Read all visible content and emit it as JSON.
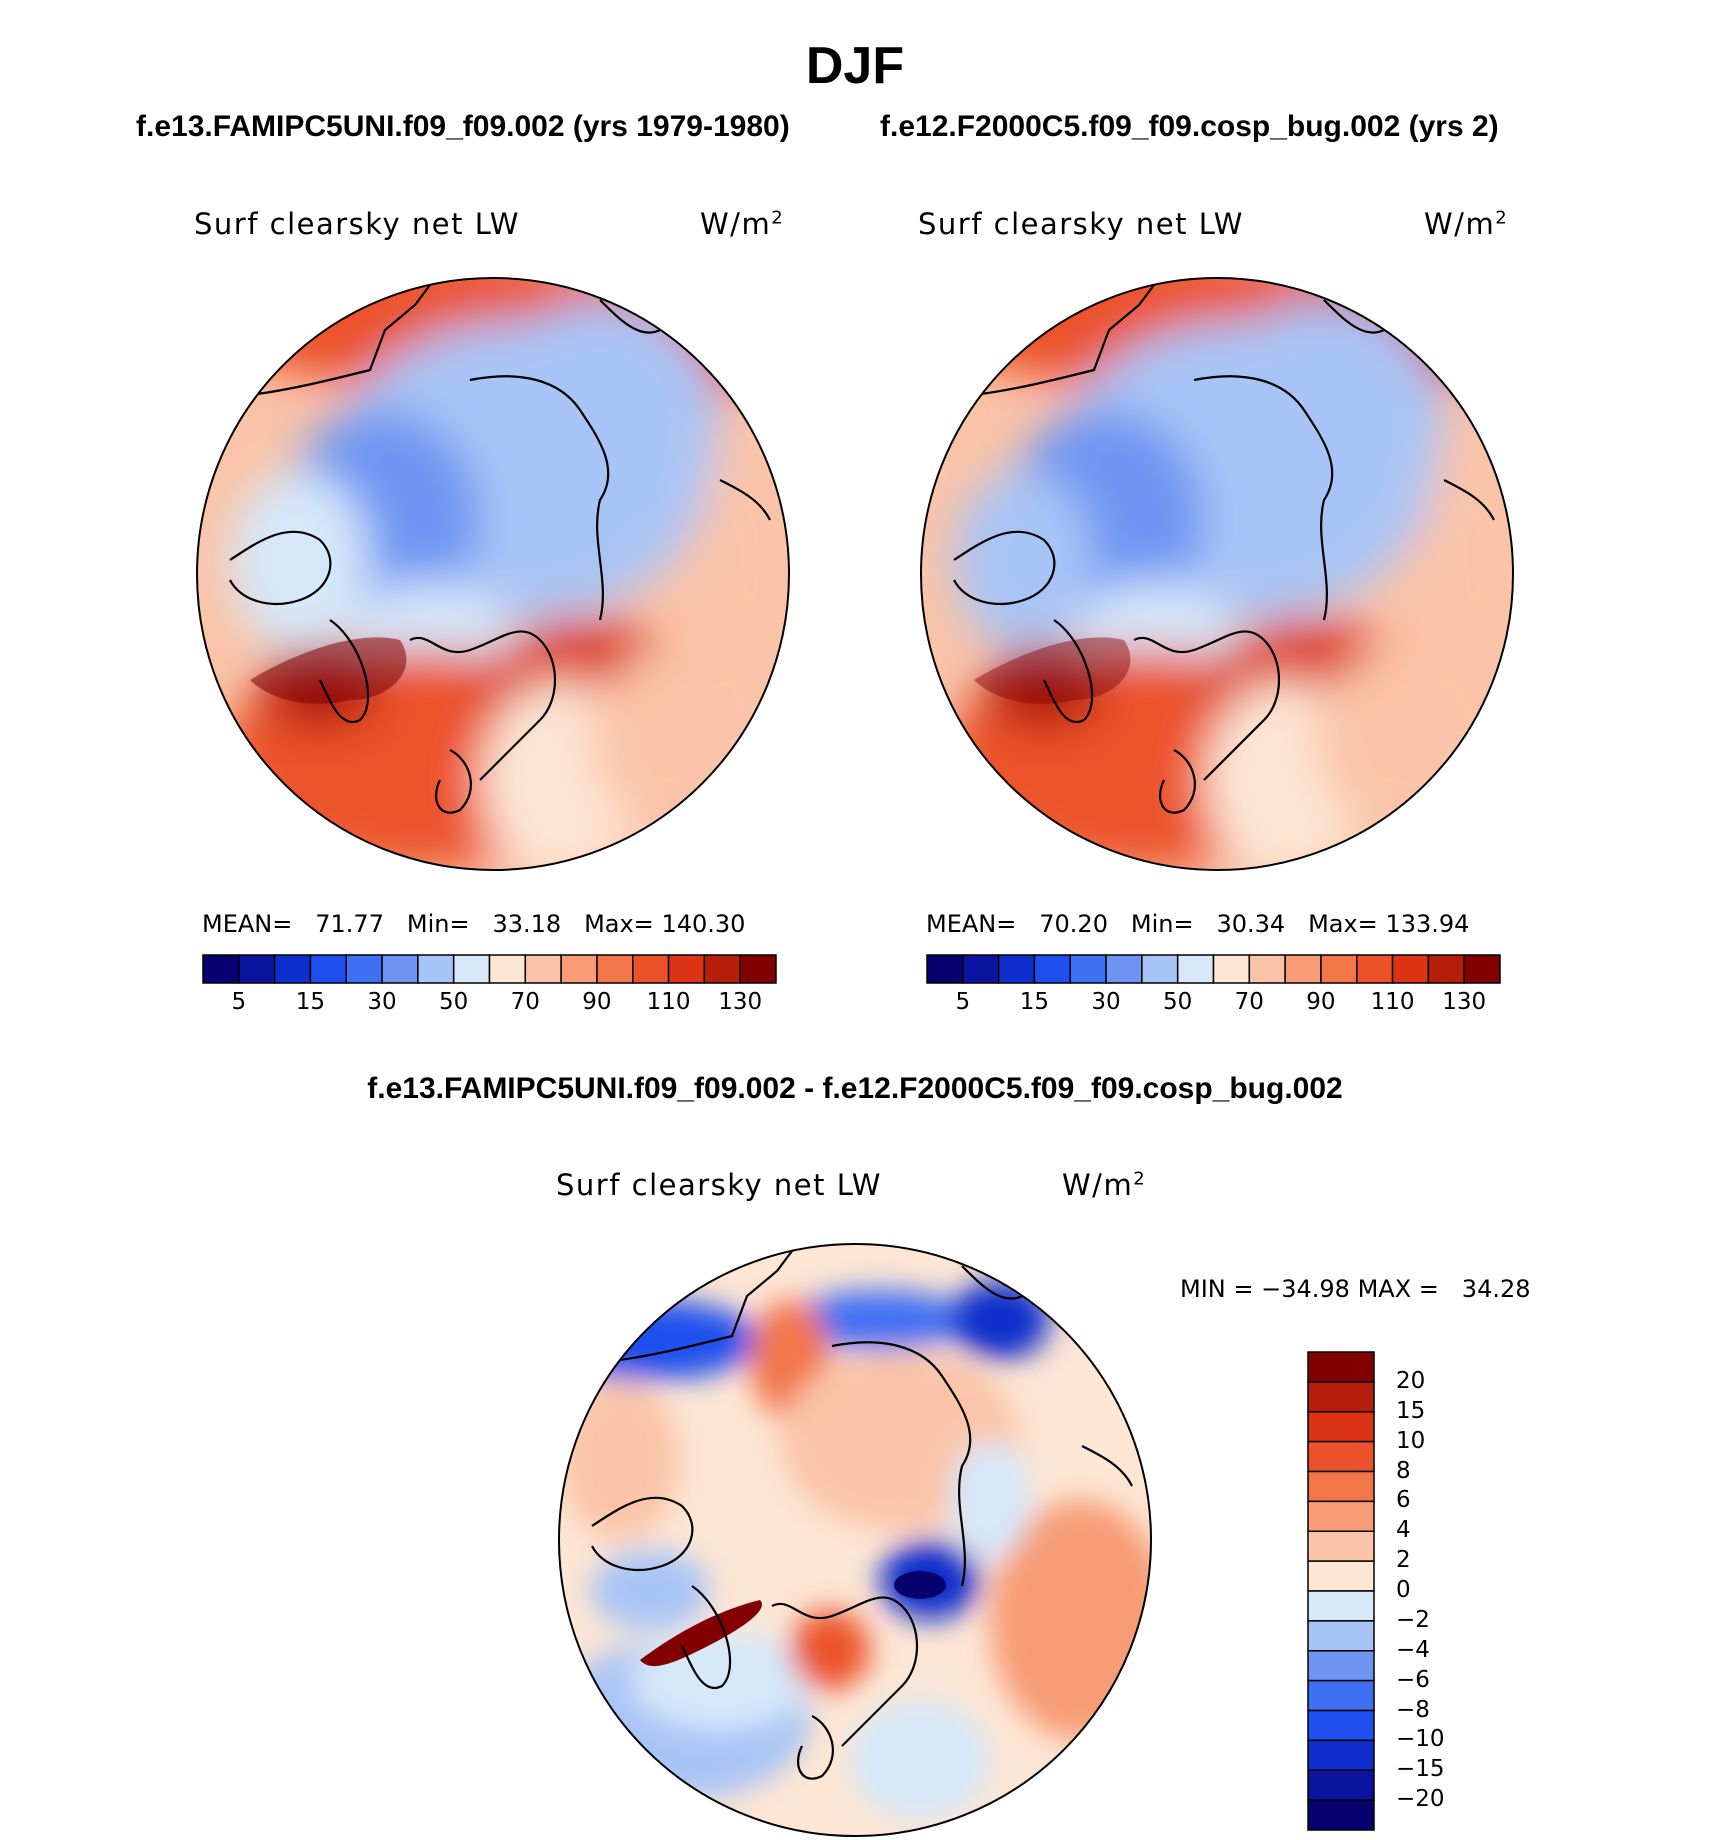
{
  "title": "DJF",
  "case_titles": [
    "f.e13.FAMIPC5UNI.f09_f09.002 (yrs 1979-1980)",
    "f.e12.F2000C5.f09_f09.cosp_bug.002 (yrs 2)"
  ],
  "diff_title": "f.e13.FAMIPC5UNI.f09_f09.002 - f.e12.F2000C5.f09_f09.cosp_bug.002",
  "chart_data": [
    {
      "type": "heatmap",
      "projection": "north polar stereographic",
      "label": "Surf clearsky net LW",
      "units": "W/m",
      "units_superscript": "2",
      "stats": {
        "mean_label": "MEAN=",
        "mean": "71.77",
        "min_label": "Min=",
        "min": "33.18",
        "max_label": "Max=",
        "max": "140.30"
      },
      "levels": [
        5,
        10,
        15,
        20,
        30,
        40,
        50,
        60,
        70,
        80,
        90,
        100,
        110,
        120,
        130
      ],
      "tick_labels": [
        "5",
        "15",
        "30",
        "50",
        "70",
        "90",
        "110",
        "130"
      ]
    },
    {
      "type": "heatmap",
      "projection": "north polar stereographic",
      "label": "Surf clearsky net LW",
      "units": "W/m",
      "units_superscript": "2",
      "stats": {
        "mean_label": "MEAN=",
        "mean": "70.20",
        "min_label": "Min=",
        "min": "30.34",
        "max_label": "Max=",
        "max": "133.94"
      },
      "levels": [
        5,
        10,
        15,
        20,
        30,
        40,
        50,
        60,
        70,
        80,
        90,
        100,
        110,
        120,
        130
      ],
      "tick_labels": [
        "5",
        "15",
        "30",
        "50",
        "70",
        "90",
        "110",
        "130"
      ]
    },
    {
      "type": "heatmap",
      "projection": "north polar stereographic",
      "label": "Surf clearsky net LW",
      "units": "W/m",
      "units_superscript": "2",
      "stats": {
        "min_label": "MIN =",
        "min": "−34.98",
        "max_label": "MAX =",
        "max": "34.28"
      },
      "levels": [
        "20",
        "15",
        "10",
        "8",
        "6",
        "4",
        "2",
        "0",
        "−2",
        "−4",
        "−6",
        "−8",
        "−10",
        "−15",
        "−20"
      ]
    }
  ],
  "palette": {
    "abs": [
      "#08006e",
      "#0a14a0",
      "#0f2fcc",
      "#1f4fee",
      "#3f70f4",
      "#6d94f2",
      "#a8c4f6",
      "#d6e8fa",
      "#fde6d4",
      "#fbc4a8",
      "#f79c76",
      "#f27648",
      "#ec522a",
      "#dc3414",
      "#b51e0a",
      "#820000"
    ],
    "diff": [
      "#820000",
      "#b51e0a",
      "#dc3414",
      "#ec522a",
      "#f27648",
      "#f79c76",
      "#fbc4a8",
      "#fde6d4",
      "#d6e8fa",
      "#a8c4f6",
      "#6d94f2",
      "#3f70f4",
      "#1f4fee",
      "#0f2fcc",
      "#0a14a0",
      "#08006e"
    ]
  }
}
